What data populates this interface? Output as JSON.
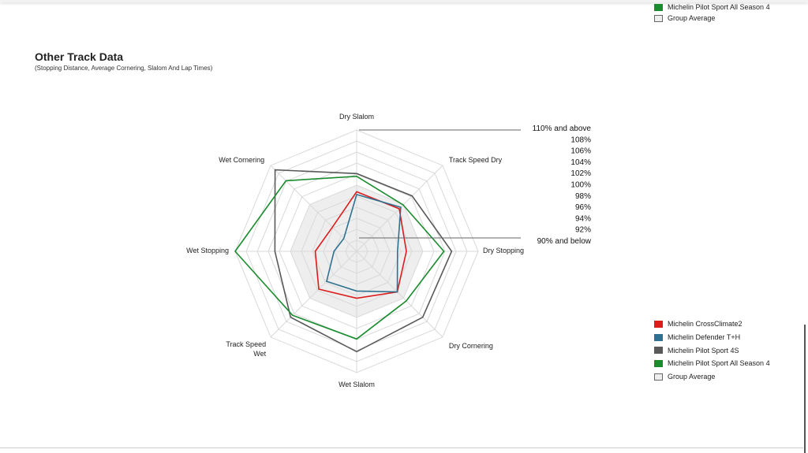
{
  "top_legend": {
    "items": [
      {
        "label": "Michelin Pilot Sport All Season 4",
        "color": "#1a8c2e"
      },
      {
        "label": "Group Average",
        "color": "#eeeeee"
      }
    ]
  },
  "section": {
    "title": "Other Track Data",
    "subtitle": "(Stopping Distance, Average Cornering, Slalom And Lap Times)"
  },
  "chart_data": {
    "type": "radar",
    "axes": [
      "Dry Slalom",
      "Track Speed Dry",
      "Dry Stopping",
      "Dry Cornering",
      "Wet Slalom",
      "Track Speed Wet",
      "Wet Stopping",
      "Wet Cornering"
    ],
    "scale": {
      "min": 90,
      "max": 110,
      "step": 2,
      "unit": "%"
    },
    "scale_labels": [
      "110% and above",
      "108%",
      "106%",
      "104%",
      "102%",
      "100%",
      "98%",
      "96%",
      "94%",
      "92%",
      "90% and below"
    ],
    "series": [
      {
        "name": "Michelin CrossClimate2",
        "color": "#dd1c1c",
        "values": [
          98.8,
          98.9,
          97.0,
          98.4,
          96.5,
          97.7,
          95.5,
          94.2
        ]
      },
      {
        "name": "Michelin Defender T+H",
        "color": "#2f7190",
        "values": [
          98.3,
          99.3,
          95.4,
          98.4,
          95.2,
          95.7,
          92.1,
          91.3
        ]
      },
      {
        "name": "Michelin Pilot Sport 4S",
        "color": "#595959",
        "values": [
          102.1,
          102.2,
          105.2,
          104.9,
          106.2,
          104.9,
          102.8,
          108.9
        ]
      },
      {
        "name": "Michelin Pilot Sport All Season 4",
        "color": "#1a8c2e",
        "values": [
          101.6,
          99.9,
          103.8,
          100.7,
          103.9,
          104.4,
          110,
          106.1
        ]
      },
      {
        "name": "Group Average",
        "color": "#eeeeee",
        "values": [
          100,
          100,
          100,
          100,
          100,
          100,
          100,
          100
        ],
        "filled": true
      }
    ],
    "grid": true,
    "legend_position": "bottom-right"
  }
}
